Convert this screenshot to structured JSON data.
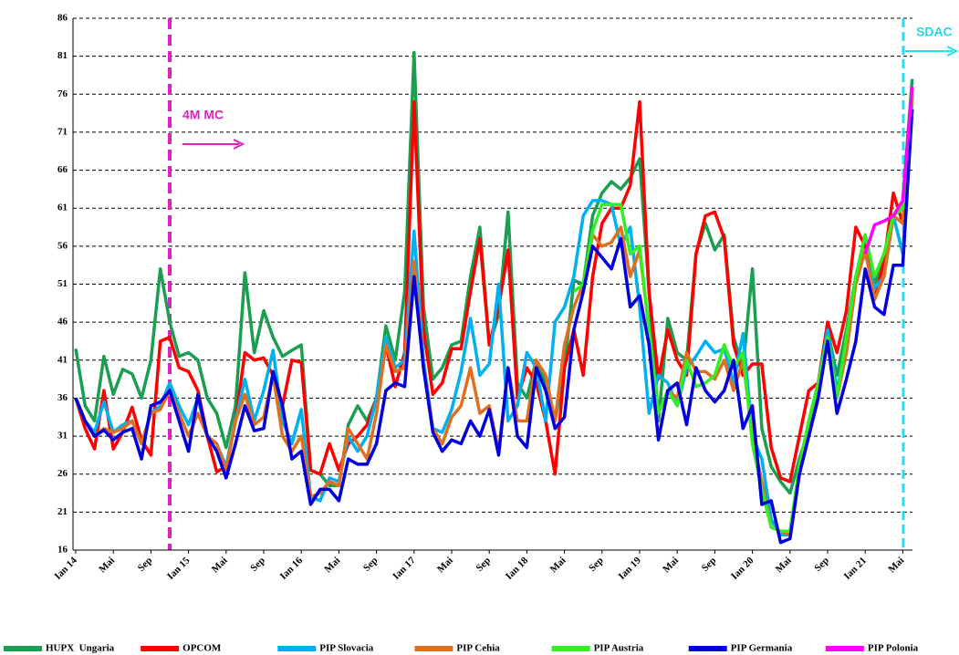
{
  "chart_data": {
    "type": "line",
    "categories": [
      "Ian 14",
      null,
      null,
      null,
      "Mai",
      null,
      null,
      null,
      "Sep",
      null,
      null,
      null,
      "Ian 15",
      null,
      null,
      null,
      "Mai",
      null,
      null,
      null,
      "Sep",
      null,
      null,
      null,
      "Ian 16",
      null,
      null,
      null,
      "Mai",
      null,
      null,
      null,
      "Sep",
      null,
      null,
      null,
      "Ian 17",
      null,
      null,
      null,
      "Mai",
      null,
      null,
      null,
      "Sep",
      null,
      null,
      null,
      "Ian 18",
      null,
      null,
      null,
      "Mai",
      null,
      null,
      null,
      "Sep",
      null,
      null,
      null,
      "Ian 19",
      null,
      null,
      null,
      "Mai",
      null,
      null,
      null,
      "Sep",
      null,
      null,
      null,
      "Ian 20",
      null,
      null,
      null,
      "Mai",
      null,
      null,
      null,
      "Sep",
      null,
      null,
      null,
      "Ian 21",
      null,
      null,
      null,
      "Mai",
      null
    ],
    "ylim": [
      16,
      86
    ],
    "yticks": [
      16,
      21,
      26,
      31,
      36,
      41,
      46,
      51,
      56,
      61,
      66,
      71,
      76,
      81,
      86
    ],
    "grid": true,
    "annotations": [
      "4M MC",
      "SDAC"
    ],
    "series": [
      {
        "name": "HUPX  Ungaria",
        "color": "#1a9e50",
        "values": [
          42.5,
          35,
          33,
          41.5,
          36.5,
          39.8,
          39.2,
          36,
          41,
          53,
          46,
          41.5,
          42,
          41,
          36,
          34,
          29.5,
          35,
          52.5,
          42,
          47.5,
          44,
          41.5,
          42.3,
          43,
          26.5,
          26,
          24.5,
          24.5,
          32.5,
          35,
          33,
          36,
          45.5,
          41,
          50,
          81.5,
          48,
          38.5,
          40,
          43,
          43.5,
          52,
          58.5,
          43,
          47,
          60.5,
          38,
          36,
          41,
          38,
          33,
          40,
          51.5,
          51,
          60,
          63,
          64.5,
          63.5,
          65,
          67.5,
          50,
          33,
          46.5,
          42,
          41,
          55,
          59,
          55.5,
          57.5,
          44,
          40,
          53,
          32,
          27,
          25,
          23.5,
          28,
          32,
          37,
          45,
          39,
          45,
          52,
          57.5,
          51,
          54.5,
          60,
          62,
          78
        ]
      },
      {
        "name": "OPCOM",
        "color": "#ff0000",
        "values": [
          36,
          32,
          29.3,
          37,
          29.3,
          31.5,
          34.8,
          30.5,
          28.5,
          43.5,
          44,
          40,
          39.5,
          37,
          31,
          26.3,
          27,
          33,
          42,
          41,
          41.3,
          39,
          35,
          41,
          40.7,
          26.5,
          26,
          30,
          26.5,
          30,
          31,
          32.5,
          36,
          43,
          37.5,
          42,
          75,
          45,
          36.5,
          38,
          42.5,
          42.5,
          50,
          57,
          43,
          48,
          55.5,
          36,
          40,
          38,
          33,
          26,
          40,
          45,
          39,
          52,
          59,
          61,
          61,
          64,
          75,
          50,
          38.5,
          45,
          41,
          39,
          55,
          60,
          60.5,
          57,
          43,
          39,
          40.5,
          40.5,
          29.5,
          25.5,
          25,
          31,
          37,
          38,
          46,
          42,
          47.5,
          58.5,
          56,
          49,
          54,
          63,
          59,
          76
        ]
      },
      {
        "name": "PIP Slovacia",
        "color": "#00b0f0",
        "values": [
          36,
          33,
          31.5,
          35.5,
          31.5,
          32.5,
          33,
          30,
          34,
          35,
          38,
          35,
          32.5,
          36,
          31,
          30,
          27,
          33,
          38.5,
          33,
          37,
          42.3,
          33,
          30,
          34.5,
          23,
          22.5,
          25.5,
          25,
          31,
          29,
          31,
          36,
          44,
          40,
          41,
          58,
          41,
          32,
          31.5,
          34.5,
          39.5,
          46.5,
          39,
          40.5,
          51,
          33,
          35,
          42,
          40,
          33,
          46,
          48,
          52,
          60,
          62,
          62,
          61.5,
          56,
          58.5,
          48,
          34,
          39,
          38,
          35,
          40,
          41.5,
          43.5,
          42,
          42.5,
          38,
          44.5,
          31,
          28,
          20,
          18,
          18,
          27,
          33,
          38,
          45,
          37,
          43,
          52,
          55,
          50.5,
          52,
          60,
          55,
          75
        ]
      },
      {
        "name": "PIP Cehia",
        "color": "#e07020",
        "values": [
          36,
          33,
          31,
          32,
          31.5,
          32,
          33,
          30,
          34,
          34.5,
          37,
          34,
          31,
          34,
          31,
          30,
          26.5,
          33,
          36.5,
          32.5,
          33.5,
          39,
          31,
          29,
          31,
          23,
          23.5,
          25,
          24.5,
          32,
          30,
          28,
          34,
          43,
          39.5,
          40,
          54,
          40,
          32,
          30,
          33.5,
          35,
          40,
          34,
          35,
          29,
          40,
          33,
          33,
          41,
          39,
          33,
          43,
          48,
          51,
          57.5,
          56,
          56.5,
          58.5,
          52,
          55.5,
          45,
          34,
          37,
          36,
          42,
          39.5,
          39.5,
          38.5,
          41,
          37,
          41,
          31,
          25,
          19,
          18.5,
          18,
          27,
          33,
          38,
          44,
          36,
          42,
          51,
          55.5,
          49,
          52,
          60,
          59,
          76
        ]
      },
      {
        "name": "PIP Austria",
        "color": "#33ee22",
        "values": [
          null,
          null,
          null,
          null,
          null,
          null,
          null,
          null,
          null,
          null,
          null,
          null,
          null,
          null,
          null,
          null,
          null,
          null,
          null,
          null,
          null,
          null,
          null,
          null,
          null,
          null,
          null,
          null,
          null,
          null,
          null,
          null,
          null,
          null,
          null,
          null,
          null,
          null,
          null,
          null,
          null,
          null,
          null,
          null,
          null,
          null,
          null,
          null,
          null,
          null,
          null,
          null,
          null,
          50,
          51,
          58,
          61.5,
          61.5,
          61.5,
          55,
          56,
          45,
          34,
          37,
          35,
          41,
          37.5,
          38,
          39,
          43,
          40,
          42,
          30,
          24,
          19,
          18.5,
          18.5,
          27,
          33,
          38,
          44,
          36,
          44,
          52,
          57.5,
          52,
          55,
          60,
          61,
          77
        ]
      },
      {
        "name": "PIP Germania",
        "color": "#0000dd",
        "values": [
          36,
          33,
          31,
          31.8,
          30.5,
          31.5,
          32,
          28,
          35,
          35.5,
          37,
          33,
          29,
          36.5,
          31,
          29,
          25.5,
          30,
          35,
          31.7,
          32,
          39.5,
          35,
          28,
          29,
          22,
          24,
          24,
          22.5,
          28,
          27.3,
          27.3,
          30,
          37,
          38,
          37.5,
          52,
          40,
          31.5,
          29,
          30.5,
          30,
          33,
          31,
          34.5,
          28.5,
          40,
          31,
          29.5,
          40,
          37,
          32,
          33.5,
          45,
          50,
          56,
          54.5,
          53,
          57,
          48,
          49.5,
          43,
          30.5,
          37,
          38,
          32.5,
          40,
          37,
          35.5,
          37,
          41,
          32,
          35,
          22,
          22.5,
          17,
          17.5,
          26,
          31,
          36,
          43.5,
          34,
          38.5,
          43.5,
          53,
          48,
          47,
          53.5,
          53.5,
          74
        ]
      },
      {
        "name": "PIP Polonia",
        "color": "#ff00ff",
        "values": [
          null,
          null,
          null,
          null,
          null,
          null,
          null,
          null,
          null,
          null,
          null,
          null,
          null,
          null,
          null,
          null,
          null,
          null,
          null,
          null,
          null,
          null,
          null,
          null,
          null,
          null,
          null,
          null,
          null,
          null,
          null,
          null,
          null,
          null,
          null,
          null,
          null,
          null,
          null,
          null,
          null,
          null,
          null,
          null,
          null,
          null,
          null,
          null,
          null,
          null,
          null,
          null,
          null,
          null,
          null,
          null,
          null,
          null,
          null,
          null,
          null,
          null,
          null,
          null,
          null,
          null,
          null,
          null,
          null,
          null,
          null,
          null,
          null,
          null,
          null,
          null,
          null,
          null,
          null,
          null,
          null,
          null,
          null,
          null,
          55,
          58.8,
          59.3,
          60,
          62,
          77
        ]
      }
    ]
  }
}
